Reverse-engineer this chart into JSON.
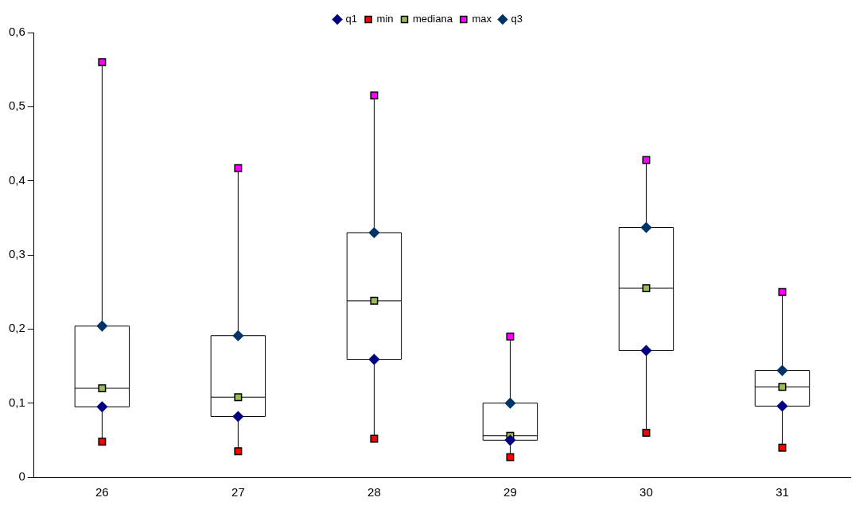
{
  "chart_data": {
    "type": "box",
    "categories": [
      "26",
      "27",
      "28",
      "29",
      "30",
      "31"
    ],
    "ylim": [
      0,
      0.6
    ],
    "yticks": [
      {
        "value": 0,
        "label": "0"
      },
      {
        "value": 0.1,
        "label": "0,1"
      },
      {
        "value": 0.2,
        "label": "0,2"
      },
      {
        "value": 0.3,
        "label": "0,3"
      },
      {
        "value": 0.4,
        "label": "0,4"
      },
      {
        "value": 0.5,
        "label": "0,5"
      },
      {
        "value": 0.6,
        "label": "0,6"
      }
    ],
    "grid": false,
    "legend": "top",
    "boxes": [
      {
        "low": 0.048,
        "q1": 0.095,
        "median": 0.12,
        "q3": 0.204,
        "high": 0.56
      },
      {
        "low": 0.035,
        "q1": 0.082,
        "median": 0.108,
        "q3": 0.191,
        "high": 0.417
      },
      {
        "low": 0.052,
        "q1": 0.159,
        "median": 0.238,
        "q3": 0.33,
        "high": 0.515
      },
      {
        "low": 0.027,
        "q1": 0.05,
        "median": 0.056,
        "q3": 0.1,
        "high": 0.19
      },
      {
        "low": 0.06,
        "q1": 0.171,
        "median": 0.255,
        "q3": 0.337,
        "high": 0.428
      },
      {
        "low": 0.04,
        "q1": 0.096,
        "median": 0.122,
        "q3": 0.144,
        "high": 0.25
      }
    ],
    "series": [
      {
        "name": "q1",
        "type": "scatter",
        "marker": "diamond",
        "color": "#000080",
        "x": [
          "26",
          "27",
          "28",
          "29",
          "30",
          "31"
        ],
        "values": [
          0.095,
          0.082,
          0.159,
          0.05,
          0.171,
          0.096
        ]
      },
      {
        "name": "min",
        "type": "scatter",
        "marker": "square",
        "color": "#ff0000",
        "x": [
          "26",
          "27",
          "28",
          "29",
          "30",
          "31"
        ],
        "values": [
          0.048,
          0.035,
          0.052,
          0.027,
          0.06,
          0.04
        ]
      },
      {
        "name": "mediana",
        "type": "scatter",
        "marker": "square",
        "color": "#9bbb59",
        "x": [
          "26",
          "27",
          "28",
          "29",
          "30",
          "31"
        ],
        "values": [
          0.12,
          0.108,
          0.238,
          0.056,
          0.255,
          0.122
        ]
      },
      {
        "name": "max",
        "type": "scatter",
        "marker": "square",
        "color": "#ff00ff",
        "x": [
          "26",
          "27",
          "28",
          "29",
          "30",
          "31"
        ],
        "values": [
          0.56,
          0.417,
          0.515,
          0.19,
          0.428,
          0.25
        ]
      },
      {
        "name": "q3",
        "type": "scatter",
        "marker": "diamond",
        "color": "#003366",
        "x": [
          "26",
          "27",
          "28",
          "29",
          "30",
          "31"
        ],
        "values": [
          0.204,
          0.191,
          0.33,
          0.1,
          0.337,
          0.144
        ]
      }
    ]
  }
}
